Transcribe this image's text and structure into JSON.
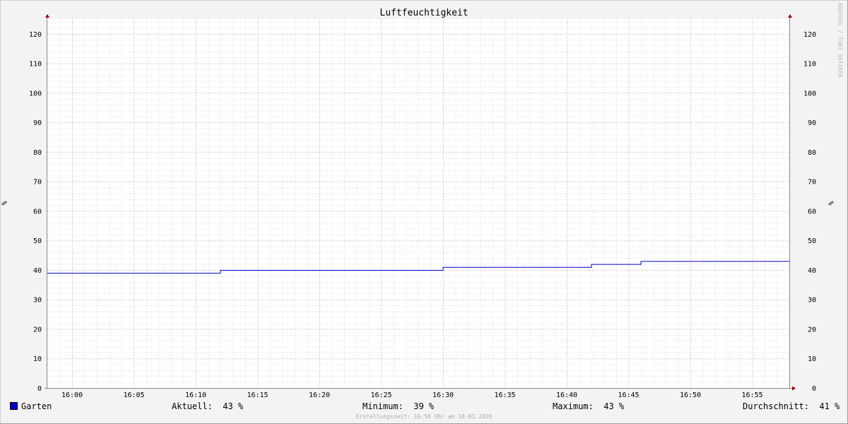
{
  "chart_data": {
    "type": "line",
    "title": "Luftfeuchtigkeit",
    "ylabel": "%",
    "ylim": [
      0,
      125
    ],
    "yticks": [
      0,
      10,
      20,
      30,
      40,
      50,
      60,
      70,
      80,
      90,
      100,
      110,
      120
    ],
    "xlim": [
      "15:58",
      "16:58"
    ],
    "xticks": [
      "16:00",
      "16:05",
      "16:10",
      "16:15",
      "16:20",
      "16:25",
      "16:30",
      "16:35",
      "16:40",
      "16:45",
      "16:50",
      "16:55"
    ],
    "grid": true,
    "series": [
      {
        "name": "Garten",
        "color": "#0000cc",
        "points": [
          [
            "15:58",
            39
          ],
          [
            "16:12",
            39
          ],
          [
            "16:12",
            40
          ],
          [
            "16:30",
            40
          ],
          [
            "16:30",
            41
          ],
          [
            "16:42",
            41
          ],
          [
            "16:42",
            42
          ],
          [
            "16:46",
            42
          ],
          [
            "16:46",
            43
          ],
          [
            "16:58",
            43
          ]
        ]
      }
    ]
  },
  "legend": {
    "series": "Garten",
    "current": "Aktuell:  43 %",
    "min": "Minimum:  39 %",
    "max": "Maximum:  43 %",
    "avg": "Durchschnitt:  41 %"
  },
  "footer": "Erstellungszeit: 16:58 Uhr am 18.03.2026",
  "watermark": "RRDTOOL / TOBI OETIKER"
}
